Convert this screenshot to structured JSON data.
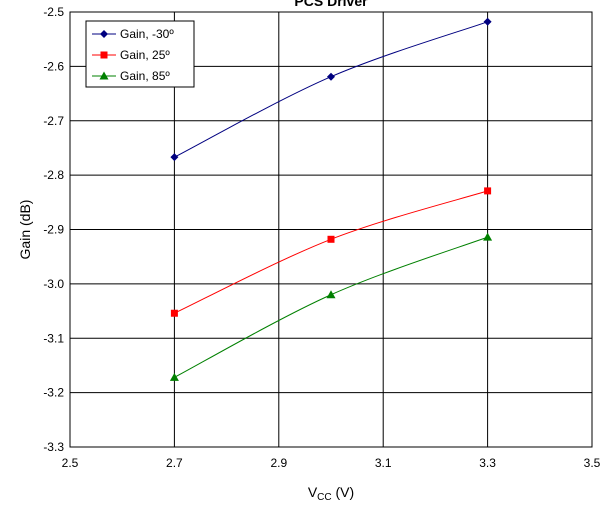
{
  "chart_data": {
    "type": "line",
    "title": "PCS Driver",
    "xlabel_main": "V",
    "xlabel_sub": "CC",
    "xlabel_unit": " (V)",
    "ylabel": "Gain (dB)",
    "xlim": [
      2.5,
      3.5
    ],
    "ylim": [
      -3.3,
      -2.5
    ],
    "x_ticks": [
      2.5,
      2.7,
      2.9,
      3.1,
      3.3,
      3.5
    ],
    "x_tick_labels": [
      "2.5",
      "2.7",
      "2.9",
      "3.1",
      "3.3",
      "3.5"
    ],
    "y_ticks": [
      -2.5,
      -2.6,
      -2.7,
      -2.8,
      -2.9,
      -3.0,
      -3.1,
      -3.2,
      -3.3
    ],
    "y_tick_labels": [
      "-2.5",
      "-2.6",
      "-2.7",
      "-2.8",
      "-2.9",
      "-3.0",
      "-3.1",
      "-3.2",
      "-3.3"
    ],
    "grid": true,
    "legend_position": "top-left",
    "x": [
      2.7,
      3.0,
      3.3
    ],
    "series": [
      {
        "name": "Gain, -30º",
        "values": [
          -2.767,
          -2.619,
          -2.518
        ],
        "color": "#000080",
        "marker": "diamond"
      },
      {
        "name": "Gain, 25º",
        "values": [
          -3.054,
          -2.918,
          -2.829
        ],
        "color": "#ff0000",
        "marker": "square"
      },
      {
        "name": "Gain, 85º",
        "values": [
          -3.172,
          -3.02,
          -2.914
        ],
        "color": "#008000",
        "marker": "triangle"
      }
    ]
  }
}
